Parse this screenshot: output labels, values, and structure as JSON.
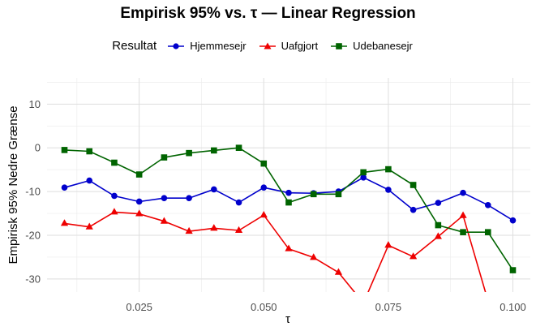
{
  "chart_data": {
    "type": "line",
    "title": "Empirisk 95% vs. τ — Linear Regression",
    "xlabel": "τ",
    "ylabel": "Empirisk 95% Nedre Grænse",
    "legend_title": "Resultat",
    "legend_position": "top",
    "grid": true,
    "xlim": [
      0.0065,
      0.1035
    ],
    "ylim": [
      -33,
      16
    ],
    "x_ticks": [
      0.025,
      0.05,
      0.075,
      0.1
    ],
    "x_tick_labels": [
      "0.025",
      "0.050",
      "0.075",
      "0.100"
    ],
    "y_ticks": [
      -30,
      -20,
      -10,
      0,
      10
    ],
    "y_tick_labels": [
      "-30",
      "-20",
      "-10",
      "0",
      "10"
    ],
    "x": [
      0.01,
      0.015,
      0.02,
      0.025,
      0.03,
      0.035,
      0.04,
      0.045,
      0.05,
      0.055,
      0.06,
      0.065,
      0.07,
      0.075,
      0.08,
      0.085,
      0.09,
      0.095,
      0.1
    ],
    "series": [
      {
        "name": "Hjemmesejr",
        "color": "#0000cc",
        "marker": "circle",
        "values": [
          -9.1,
          -7.5,
          -11.0,
          -12.3,
          -11.5,
          -11.5,
          -9.5,
          -12.5,
          -9.1,
          -10.3,
          -10.4,
          -10.0,
          -6.8,
          -9.6,
          -14.2,
          -12.6,
          -10.3,
          -13.1,
          -16.6
        ]
      },
      {
        "name": "Uafgjort",
        "color": "#ee0000",
        "marker": "triangle",
        "values": [
          -17.3,
          -18.1,
          -14.7,
          -15.1,
          -16.8,
          -19.1,
          -18.4,
          -18.9,
          -15.4,
          -23.1,
          -25.1,
          -28.5,
          -35.5,
          -22.3,
          -24.9,
          -20.3,
          -15.5,
          -35.0,
          null
        ]
      },
      {
        "name": "Udebanesejr",
        "color": "#006400",
        "marker": "square",
        "values": [
          -0.5,
          -0.8,
          -3.4,
          -6.1,
          -2.2,
          -1.2,
          -0.6,
          0.0,
          -3.6,
          -12.5,
          -10.6,
          -10.6,
          -5.6,
          -4.9,
          -8.5,
          -17.7,
          -19.3,
          -19.3,
          -28.0
        ]
      }
    ]
  }
}
